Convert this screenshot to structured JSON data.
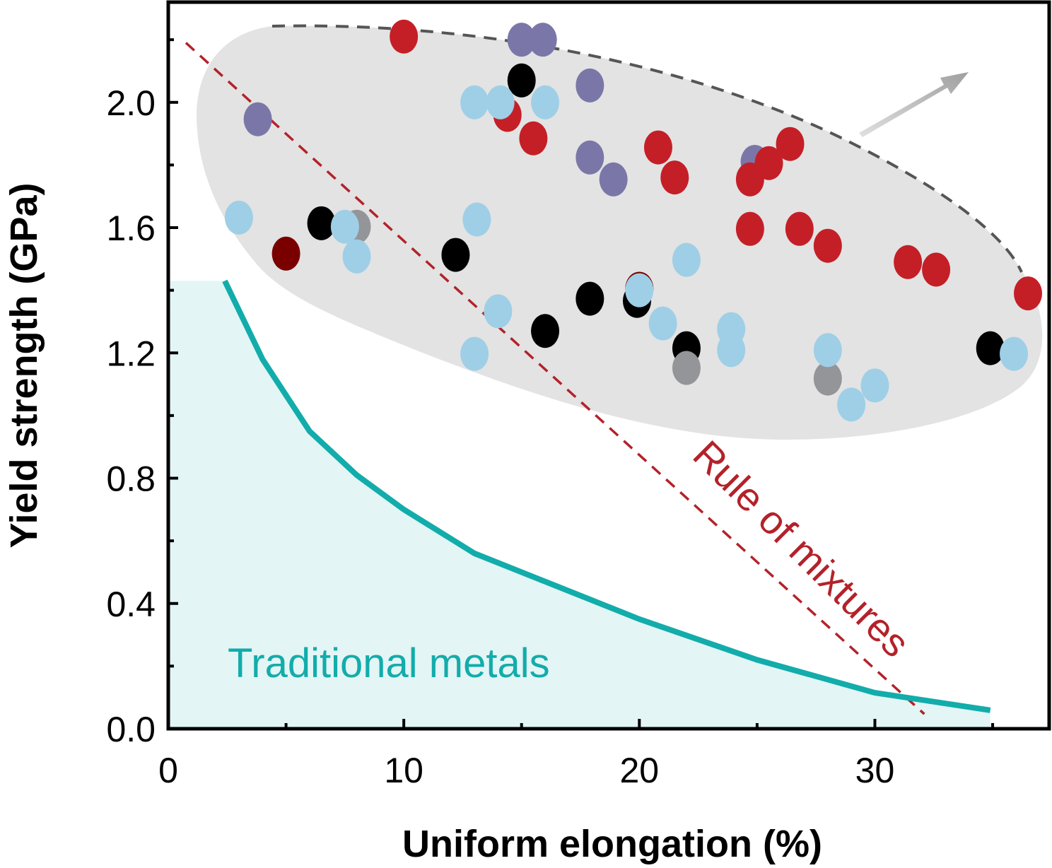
{
  "chart_data": {
    "type": "scatter",
    "xlabel": "Uniform elongation (%)",
    "ylabel": "Yield strength (GPa)",
    "xlim": [
      0,
      37.4
    ],
    "ylim": [
      0,
      2.32
    ],
    "xticks": [
      "0",
      "10",
      "20",
      "30"
    ],
    "xtick_values": [
      0,
      10,
      20,
      30
    ],
    "xminor": [
      5,
      15,
      25,
      35
    ],
    "yticks": [
      "0.0",
      "0.4",
      "0.8",
      "1.2",
      "1.6",
      "2.0"
    ],
    "ytick_values": [
      0,
      0.4,
      0.8,
      1.2,
      1.6,
      2.0
    ],
    "yminor": [
      0.2,
      0.6,
      1.0,
      1.4,
      1.8,
      2.2
    ],
    "grid": false,
    "colors": {
      "red": "#c41f27",
      "purple": "#7a77a8",
      "black": "#000000",
      "gray": "#939598",
      "maroon": "#7a0000",
      "lightblue": "#9ecfe6",
      "teal": "#12acab",
      "teal_fill": "#e3f5f5",
      "region": "#e3e3e3",
      "rule": "#b3222a"
    },
    "series": [
      {
        "color": "purple",
        "points": [
          [
            3.8,
            1.946
          ],
          [
            15.0,
            2.2
          ],
          [
            15.9,
            2.2
          ],
          [
            17.9,
            2.054
          ],
          [
            17.9,
            1.824
          ],
          [
            18.9,
            1.754
          ],
          [
            24.9,
            1.81
          ]
        ]
      },
      {
        "color": "black",
        "points": [
          [
            15.0,
            2.07
          ],
          [
            6.5,
            1.614
          ],
          [
            12.2,
            1.513
          ],
          [
            17.9,
            1.373
          ],
          [
            19.9,
            1.366
          ],
          [
            16.0,
            1.27
          ],
          [
            22.0,
            1.215
          ],
          [
            34.9,
            1.215
          ]
        ]
      },
      {
        "color": "maroon",
        "points": [
          [
            5.0,
            1.517
          ],
          [
            20.0,
            1.405
          ]
        ]
      },
      {
        "color": "gray",
        "points": [
          [
            8.0,
            1.603
          ],
          [
            22.0,
            1.152
          ],
          [
            28.0,
            1.118
          ]
        ]
      },
      {
        "color": "red",
        "points": [
          [
            10.0,
            2.21
          ],
          [
            14.4,
            1.96
          ],
          [
            15.5,
            1.885
          ],
          [
            20.8,
            1.856
          ],
          [
            21.5,
            1.76
          ],
          [
            26.4,
            1.867
          ],
          [
            25.5,
            1.806
          ],
          [
            24.7,
            1.754
          ],
          [
            24.7,
            1.596
          ],
          [
            26.8,
            1.596
          ],
          [
            28.0,
            1.542
          ],
          [
            31.4,
            1.49
          ],
          [
            32.6,
            1.466
          ],
          [
            36.5,
            1.39
          ]
        ]
      },
      {
        "color": "lightblue",
        "points": [
          [
            3.0,
            1.632
          ],
          [
            7.5,
            1.603
          ],
          [
            8.0,
            1.508
          ],
          [
            13.1,
            1.626
          ],
          [
            13.0,
            2.0
          ],
          [
            14.1,
            2.0
          ],
          [
            16.0,
            2.0
          ],
          [
            14.0,
            1.333
          ],
          [
            13.0,
            1.197
          ],
          [
            20.0,
            1.4
          ],
          [
            21.0,
            1.294
          ],
          [
            22.0,
            1.497
          ],
          [
            23.9,
            1.276
          ],
          [
            23.9,
            1.209
          ],
          [
            28.0,
            1.209
          ],
          [
            30.0,
            1.096
          ],
          [
            29.0,
            1.035
          ],
          [
            35.9,
            1.197
          ]
        ]
      }
    ],
    "traditional_metals_curve": [
      [
        2.4,
        1.43
      ],
      [
        4,
        1.18
      ],
      [
        6,
        0.95
      ],
      [
        8,
        0.81
      ],
      [
        10,
        0.7
      ],
      [
        13,
        0.56
      ],
      [
        16,
        0.47
      ],
      [
        20,
        0.35
      ],
      [
        25,
        0.22
      ],
      [
        30,
        0.115
      ],
      [
        34.9,
        0.059
      ]
    ],
    "traditional_metals_fill_level": 1.43,
    "rule_of_mixtures_line": [
      [
        0.75,
        2.19
      ],
      [
        32.1,
        0.047
      ]
    ],
    "annotations": {
      "rule_of_mixtures": "Rule of mixtures",
      "traditional_metals": "Traditional metals"
    }
  }
}
